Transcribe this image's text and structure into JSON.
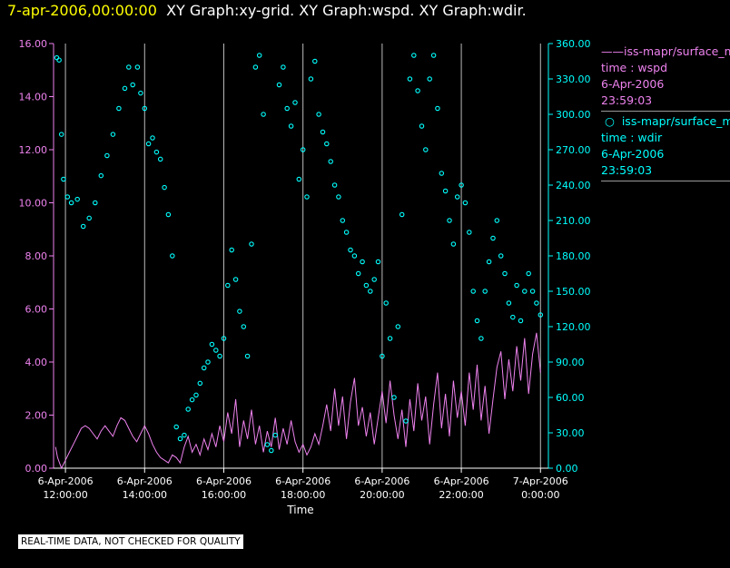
{
  "title": {
    "date": "7-apr-2006,00:00:00",
    "graphs": "XY Graph:xy-grid.  XY Graph:wspd.  XY Graph:wdir."
  },
  "legend": {
    "wspd": {
      "name": "iss-mapr/surface_met",
      "label": "time : wspd",
      "date": "6-Apr-2006",
      "time": "23:59:03"
    },
    "wdir": {
      "name": "iss-mapr/surface_met",
      "label": "time : wdir",
      "date": "6-Apr-2006",
      "time": "23:59:03"
    }
  },
  "disclaimer": "REAL-TIME DATA, NOT CHECKED FOR QUALITY",
  "colors": {
    "wspd": "#ee82ee",
    "wdir": "#00ffff",
    "grid": "#bbbbbb",
    "text": "#ffffff",
    "title_date": "#ffff00"
  },
  "chart_data": {
    "type": "line+scatter",
    "xlabel": "Time",
    "xlim_hours": [
      11.7,
      24.2
    ],
    "x_ticks": [
      {
        "hour": 12,
        "date": "6-Apr-2006",
        "time": "12:00:00"
      },
      {
        "hour": 14,
        "date": "6-Apr-2006",
        "time": "14:00:00"
      },
      {
        "hour": 16,
        "date": "6-Apr-2006",
        "time": "16:00:00"
      },
      {
        "hour": 18,
        "date": "6-Apr-2006",
        "time": "18:00:00"
      },
      {
        "hour": 20,
        "date": "6-Apr-2006",
        "time": "20:00:00"
      },
      {
        "hour": 22,
        "date": "6-Apr-2006",
        "time": "22:00:00"
      },
      {
        "hour": 24,
        "date": "7-Apr-2006",
        "time": "0:00:00"
      }
    ],
    "y_left": {
      "label": "wspd",
      "range": [
        0,
        16
      ],
      "ticks": [
        "0.00",
        "2.00",
        "4.00",
        "6.00",
        "8.00",
        "10.00",
        "12.00",
        "14.00",
        "16.00"
      ]
    },
    "y_right": {
      "label": "wdir",
      "range": [
        0,
        360
      ],
      "ticks": [
        "0.00",
        "30.00",
        "60.00",
        "90.00",
        "120.00",
        "150.00",
        "180.00",
        "210.00",
        "240.00",
        "270.00",
        "300.00",
        "330.00",
        "360.00"
      ]
    },
    "series": [
      {
        "name": "wspd",
        "style": "line",
        "axis": "left",
        "points": [
          [
            11.75,
            0.8
          ],
          [
            11.8,
            0.4
          ],
          [
            11.85,
            0.2
          ],
          [
            11.9,
            0
          ],
          [
            12.0,
            0.3
          ],
          [
            12.1,
            0.6
          ],
          [
            12.2,
            0.9
          ],
          [
            12.3,
            1.2
          ],
          [
            12.4,
            1.5
          ],
          [
            12.5,
            1.6
          ],
          [
            12.6,
            1.5
          ],
          [
            12.7,
            1.3
          ],
          [
            12.8,
            1.1
          ],
          [
            12.9,
            1.4
          ],
          [
            13.0,
            1.6
          ],
          [
            13.1,
            1.4
          ],
          [
            13.2,
            1.2
          ],
          [
            13.3,
            1.6
          ],
          [
            13.4,
            1.9
          ],
          [
            13.5,
            1.8
          ],
          [
            13.6,
            1.5
          ],
          [
            13.7,
            1.2
          ],
          [
            13.8,
            1.0
          ],
          [
            13.9,
            1.3
          ],
          [
            14.0,
            1.6
          ],
          [
            14.1,
            1.3
          ],
          [
            14.2,
            0.9
          ],
          [
            14.3,
            0.6
          ],
          [
            14.4,
            0.4
          ],
          [
            14.5,
            0.3
          ],
          [
            14.6,
            0.2
          ],
          [
            14.7,
            0.5
          ],
          [
            14.8,
            0.4
          ],
          [
            14.9,
            0.2
          ],
          [
            15.0,
            0.8
          ],
          [
            15.1,
            1.2
          ],
          [
            15.2,
            0.6
          ],
          [
            15.3,
            0.9
          ],
          [
            15.4,
            0.5
          ],
          [
            15.5,
            1.1
          ],
          [
            15.6,
            0.7
          ],
          [
            15.7,
            1.3
          ],
          [
            15.8,
            0.8
          ],
          [
            15.9,
            1.6
          ],
          [
            16.0,
            1.0
          ],
          [
            16.1,
            2.1
          ],
          [
            16.2,
            1.3
          ],
          [
            16.3,
            2.6
          ],
          [
            16.4,
            0.8
          ],
          [
            16.5,
            1.8
          ],
          [
            16.6,
            1.1
          ],
          [
            16.7,
            2.2
          ],
          [
            16.8,
            0.9
          ],
          [
            16.9,
            1.6
          ],
          [
            17.0,
            0.6
          ],
          [
            17.1,
            1.4
          ],
          [
            17.2,
            0.8
          ],
          [
            17.3,
            1.9
          ],
          [
            17.4,
            0.7
          ],
          [
            17.5,
            1.5
          ],
          [
            17.6,
            0.9
          ],
          [
            17.7,
            1.8
          ],
          [
            17.8,
            1.0
          ],
          [
            17.9,
            0.6
          ],
          [
            18.0,
            0.9
          ],
          [
            18.1,
            0.5
          ],
          [
            18.2,
            0.8
          ],
          [
            18.3,
            1.3
          ],
          [
            18.4,
            0.9
          ],
          [
            18.5,
            1.6
          ],
          [
            18.6,
            2.4
          ],
          [
            18.7,
            1.4
          ],
          [
            18.8,
            3.0
          ],
          [
            18.9,
            1.6
          ],
          [
            19.0,
            2.7
          ],
          [
            19.1,
            1.1
          ],
          [
            19.2,
            2.5
          ],
          [
            19.3,
            3.4
          ],
          [
            19.4,
            1.6
          ],
          [
            19.5,
            2.3
          ],
          [
            19.6,
            1.2
          ],
          [
            19.7,
            2.1
          ],
          [
            19.8,
            0.9
          ],
          [
            19.9,
            1.9
          ],
          [
            20.0,
            2.9
          ],
          [
            20.1,
            1.7
          ],
          [
            20.2,
            3.3
          ],
          [
            20.3,
            2.0
          ],
          [
            20.4,
            1.1
          ],
          [
            20.5,
            2.2
          ],
          [
            20.6,
            0.8
          ],
          [
            20.7,
            2.6
          ],
          [
            20.8,
            1.4
          ],
          [
            20.9,
            3.2
          ],
          [
            21.0,
            1.8
          ],
          [
            21.1,
            2.7
          ],
          [
            21.2,
            0.9
          ],
          [
            21.3,
            2.4
          ],
          [
            21.4,
            3.6
          ],
          [
            21.5,
            1.5
          ],
          [
            21.6,
            2.8
          ],
          [
            21.7,
            1.2
          ],
          [
            21.8,
            3.3
          ],
          [
            21.9,
            1.9
          ],
          [
            22.0,
            2.9
          ],
          [
            22.1,
            1.6
          ],
          [
            22.2,
            3.6
          ],
          [
            22.3,
            2.2
          ],
          [
            22.4,
            3.9
          ],
          [
            22.5,
            1.8
          ],
          [
            22.6,
            3.1
          ],
          [
            22.7,
            1.3
          ],
          [
            22.8,
            2.6
          ],
          [
            22.9,
            3.8
          ],
          [
            23.0,
            4.4
          ],
          [
            23.1,
            2.6
          ],
          [
            23.2,
            4.1
          ],
          [
            23.3,
            2.9
          ],
          [
            23.4,
            4.6
          ],
          [
            23.5,
            3.3
          ],
          [
            23.6,
            4.9
          ],
          [
            23.7,
            2.8
          ],
          [
            23.8,
            4.3
          ],
          [
            23.9,
            5.1
          ],
          [
            24.0,
            3.6
          ]
        ]
      },
      {
        "name": "wdir",
        "style": "points",
        "axis": "right",
        "points": [
          [
            11.78,
            348
          ],
          [
            11.84,
            346
          ],
          [
            11.9,
            283
          ],
          [
            11.95,
            245
          ],
          [
            12.05,
            230
          ],
          [
            12.15,
            225
          ],
          [
            12.3,
            228
          ],
          [
            12.45,
            205
          ],
          [
            12.6,
            212
          ],
          [
            12.75,
            225
          ],
          [
            12.9,
            248
          ],
          [
            13.05,
            265
          ],
          [
            13.2,
            283
          ],
          [
            13.35,
            305
          ],
          [
            13.5,
            322
          ],
          [
            13.6,
            340
          ],
          [
            13.7,
            325
          ],
          [
            13.82,
            340
          ],
          [
            13.9,
            318
          ],
          [
            14.0,
            305
          ],
          [
            14.1,
            275
          ],
          [
            14.2,
            280
          ],
          [
            14.3,
            268
          ],
          [
            14.4,
            262
          ],
          [
            14.5,
            238
          ],
          [
            14.6,
            215
          ],
          [
            14.7,
            180
          ],
          [
            14.8,
            35
          ],
          [
            14.9,
            25
          ],
          [
            15.0,
            28
          ],
          [
            15.1,
            50
          ],
          [
            15.2,
            58
          ],
          [
            15.3,
            62
          ],
          [
            15.4,
            72
          ],
          [
            15.5,
            85
          ],
          [
            15.6,
            90
          ],
          [
            15.7,
            105
          ],
          [
            15.8,
            100
          ],
          [
            15.9,
            95
          ],
          [
            16.0,
            110
          ],
          [
            16.1,
            155
          ],
          [
            16.2,
            185
          ],
          [
            16.3,
            160
          ],
          [
            16.4,
            133
          ],
          [
            16.5,
            120
          ],
          [
            16.6,
            95
          ],
          [
            16.7,
            190
          ],
          [
            16.8,
            340
          ],
          [
            16.9,
            350
          ],
          [
            17.0,
            300
          ],
          [
            17.1,
            20
          ],
          [
            17.2,
            15
          ],
          [
            17.3,
            28
          ],
          [
            17.4,
            325
          ],
          [
            17.5,
            340
          ],
          [
            17.6,
            305
          ],
          [
            17.7,
            290
          ],
          [
            17.8,
            310
          ],
          [
            17.9,
            245
          ],
          [
            18.0,
            270
          ],
          [
            18.1,
            230
          ],
          [
            18.2,
            330
          ],
          [
            18.3,
            345
          ],
          [
            18.4,
            300
          ],
          [
            18.5,
            285
          ],
          [
            18.6,
            275
          ],
          [
            18.7,
            260
          ],
          [
            18.8,
            240
          ],
          [
            18.9,
            230
          ],
          [
            19.0,
            210
          ],
          [
            19.1,
            200
          ],
          [
            19.2,
            185
          ],
          [
            19.3,
            180
          ],
          [
            19.4,
            165
          ],
          [
            19.5,
            175
          ],
          [
            19.6,
            155
          ],
          [
            19.7,
            150
          ],
          [
            19.8,
            160
          ],
          [
            19.9,
            175
          ],
          [
            20.0,
            95
          ],
          [
            20.1,
            140
          ],
          [
            20.2,
            110
          ],
          [
            20.3,
            60
          ],
          [
            20.4,
            120
          ],
          [
            20.5,
            215
          ],
          [
            20.6,
            40
          ],
          [
            20.7,
            330
          ],
          [
            20.8,
            350
          ],
          [
            20.9,
            320
          ],
          [
            21.0,
            290
          ],
          [
            21.1,
            270
          ],
          [
            21.2,
            330
          ],
          [
            21.3,
            350
          ],
          [
            21.4,
            305
          ],
          [
            21.5,
            250
          ],
          [
            21.6,
            235
          ],
          [
            21.7,
            210
          ],
          [
            21.8,
            190
          ],
          [
            21.9,
            230
          ],
          [
            22.0,
            240
          ],
          [
            22.1,
            225
          ],
          [
            22.2,
            200
          ],
          [
            22.3,
            150
          ],
          [
            22.4,
            125
          ],
          [
            22.5,
            110
          ],
          [
            22.6,
            150
          ],
          [
            22.7,
            175
          ],
          [
            22.8,
            195
          ],
          [
            22.9,
            210
          ],
          [
            23.0,
            180
          ],
          [
            23.1,
            165
          ],
          [
            23.2,
            140
          ],
          [
            23.3,
            128
          ],
          [
            23.4,
            155
          ],
          [
            23.5,
            125
          ],
          [
            23.6,
            150
          ],
          [
            23.7,
            165
          ],
          [
            23.8,
            150
          ],
          [
            23.9,
            140
          ],
          [
            24.0,
            130
          ]
        ]
      }
    ]
  }
}
